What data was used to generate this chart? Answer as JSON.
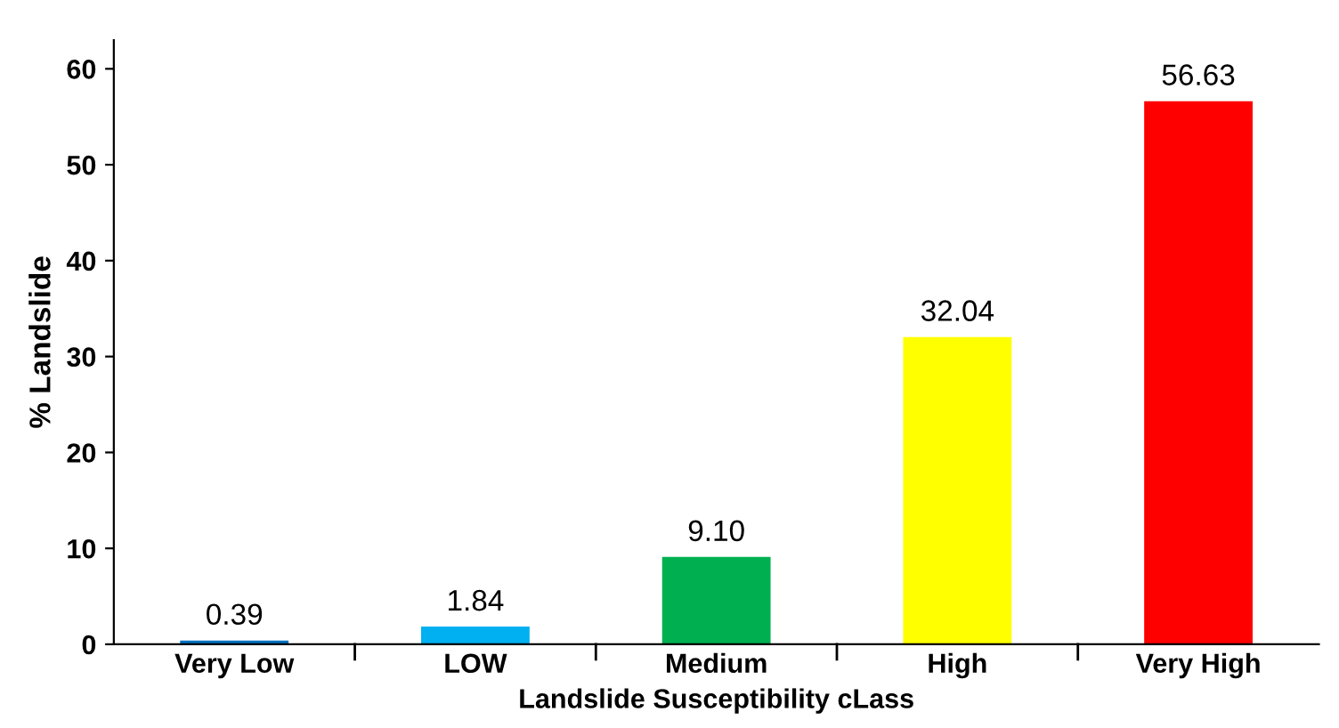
{
  "chart_data": {
    "type": "bar",
    "xlabel": "Landslide Susceptibility cLass",
    "ylabel": "% Landslide",
    "categories": [
      "Very Low",
      "LOW",
      "Medium",
      "High",
      "Very High"
    ],
    "values": [
      0.39,
      1.84,
      9.1,
      32.04,
      56.63
    ],
    "colors": [
      "#0070c0",
      "#00b0f0",
      "#00b050",
      "#ffff00",
      "#ff0000"
    ],
    "value_labels": [
      "0.39",
      "1.84",
      "9.10",
      "32.04",
      "56.63"
    ],
    "ylim": [
      0,
      63
    ],
    "yticks": [
      0,
      10,
      20,
      30,
      40,
      50,
      60
    ],
    "grid": false
  }
}
